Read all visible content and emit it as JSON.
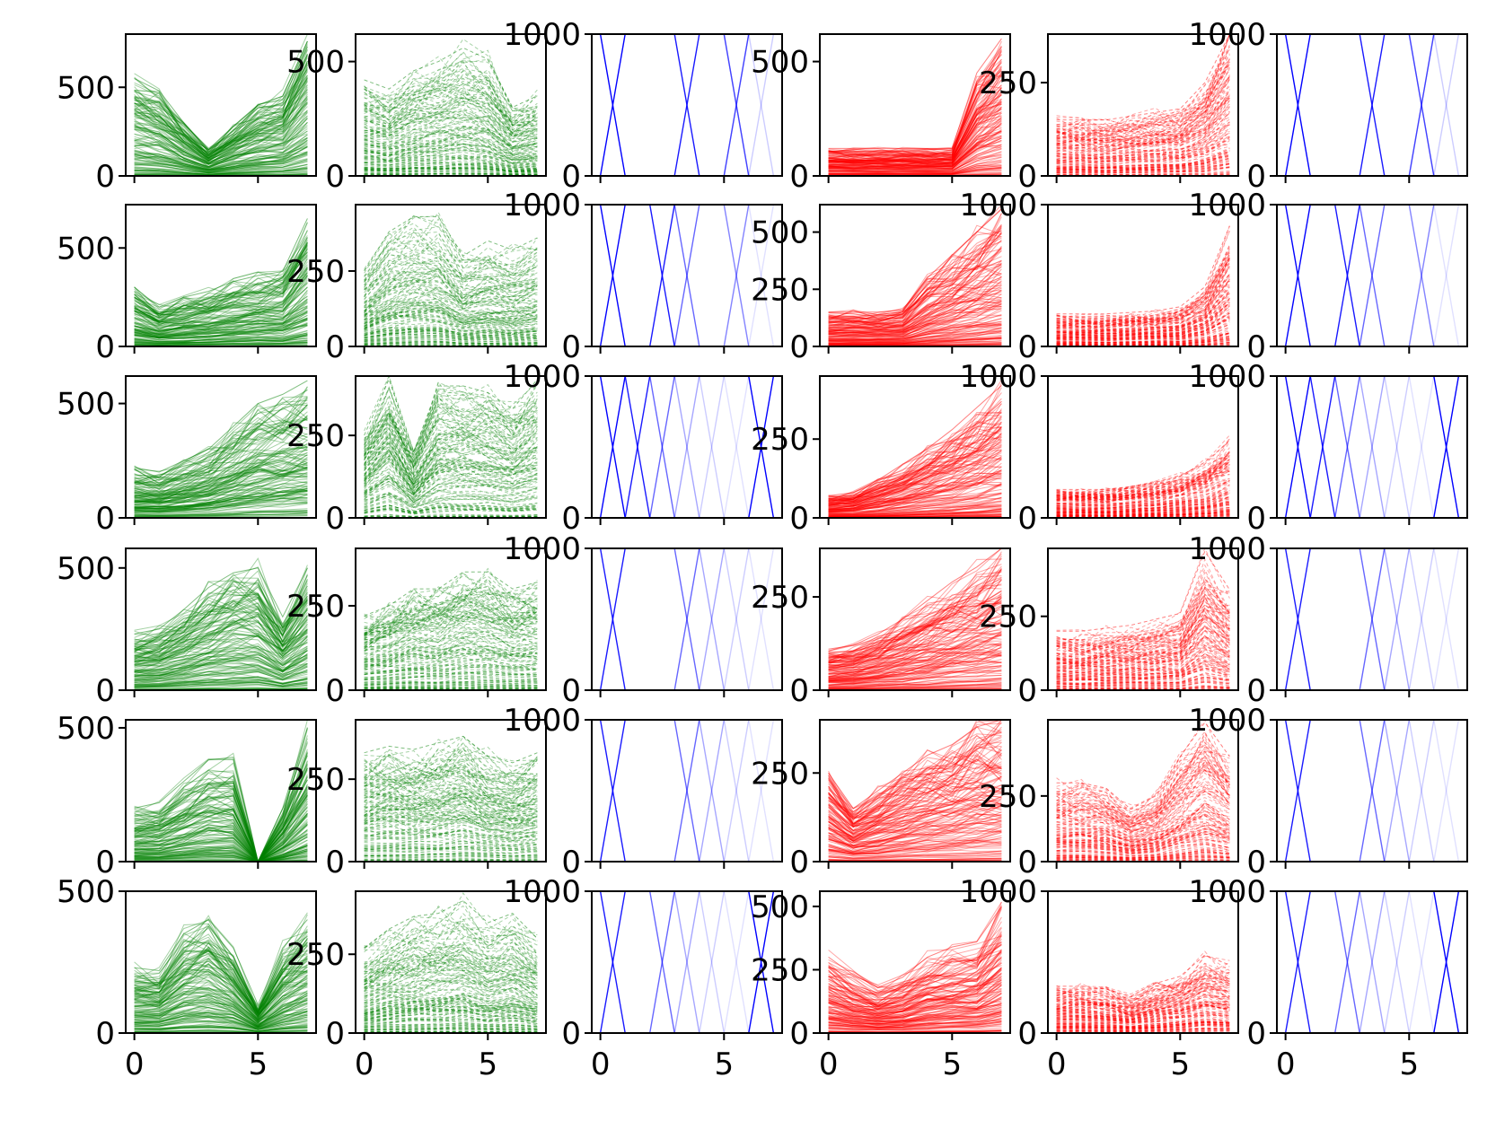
{
  "colors": {
    "green": "#008000",
    "red": "#ff0000",
    "blue": "#0000ff"
  },
  "chart_data": {
    "type": "line",
    "layout": "6x6 grid of small multiples; each row shares columns of the same kind",
    "x": [
      0,
      1,
      2,
      3,
      4,
      5,
      6,
      7
    ],
    "xlim": [
      -0.35,
      7.35
    ],
    "xticks": [
      0,
      5
    ],
    "xtick_labels_bottom_row_only": true,
    "column_kinds": [
      {
        "column": 1,
        "color": "green",
        "style": "solid",
        "description": "many overlapping series"
      },
      {
        "column": 2,
        "color": "green",
        "style": "dashed",
        "description": "many overlapping series"
      },
      {
        "column": 3,
        "color": "blue",
        "style": "solid",
        "description": "binary 0/1000 switching series"
      },
      {
        "column": 4,
        "color": "red",
        "style": "solid",
        "description": "many overlapping series"
      },
      {
        "column": 5,
        "color": "red",
        "style": "dashed",
        "description": "many overlapping series"
      },
      {
        "column": 6,
        "color": "blue",
        "style": "solid",
        "description": "binary 0/1000 switching series"
      }
    ],
    "panels": [
      [
        {
          "ylim": [
            0,
            800
          ],
          "yticks": [
            0,
            500
          ],
          "envelope": [
            550,
            480,
            300,
            150,
            280,
            400,
            450,
            760
          ],
          "peaks": [
            2,
            160,
            0,
            5,
            10,
            20,
            30,
            0
          ]
        },
        {
          "ylim": [
            0,
            620
          ],
          "yticks": [
            0,
            500
          ],
          "envelope": [
            420,
            380,
            460,
            500,
            560,
            510,
            300,
            350
          ]
        },
        {
          "ylim": [
            0,
            1000
          ],
          "yticks": [
            0,
            1000
          ],
          "switch": [
            1,
            4,
            5.5,
            6,
            7
          ]
        },
        {
          "ylim": [
            0,
            620
          ],
          "yticks": [
            0,
            500
          ],
          "envelope": [
            120,
            120,
            120,
            120,
            120,
            120,
            450,
            600
          ]
        },
        {
          "ylim": [
            0,
            380
          ],
          "yticks": [
            0,
            250
          ],
          "envelope": [
            150,
            150,
            150,
            160,
            170,
            180,
            250,
            390
          ]
        },
        {
          "ylim": [
            0,
            1000
          ],
          "yticks": [
            0,
            1000
          ],
          "switch": [
            1,
            4,
            5.5,
            6,
            7
          ]
        }
      ],
      [
        {
          "ylim": [
            0,
            720
          ],
          "yticks": [
            0,
            500
          ],
          "envelope": [
            300,
            200,
            250,
            280,
            330,
            360,
            380,
            650
          ]
        },
        {
          "ylim": [
            0,
            470
          ],
          "yticks": [
            0,
            250
          ],
          "envelope": [
            250,
            380,
            430,
            430,
            300,
            350,
            320,
            360
          ]
        },
        {
          "ylim": [
            0,
            1000
          ],
          "yticks": [
            0,
            1000
          ],
          "switch": [
            1,
            3,
            4,
            5.5,
            6,
            7
          ]
        },
        {
          "ylim": [
            0,
            620
          ],
          "yticks": [
            0,
            250,
            500
          ],
          "envelope": [
            150,
            150,
            150,
            160,
            300,
            400,
            500,
            600
          ]
        },
        {
          "ylim": [
            0,
            1000
          ],
          "yticks": [
            0,
            1000
          ],
          "envelope": [
            230,
            230,
            230,
            240,
            250,
            280,
            420,
            850
          ]
        },
        {
          "ylim": [
            0,
            1000
          ],
          "yticks": [
            0,
            1000
          ],
          "switch": [
            1,
            3,
            4,
            5.5,
            6,
            7
          ]
        }
      ],
      [
        {
          "ylim": [
            0,
            620
          ],
          "yticks": [
            0,
            500
          ],
          "envelope": [
            220,
            200,
            250,
            300,
            400,
            500,
            540,
            600
          ]
        },
        {
          "ylim": [
            0,
            430
          ],
          "yticks": [
            0,
            250
          ],
          "envelope": [
            250,
            420,
            200,
            400,
            400,
            380,
            330,
            420
          ]
        },
        {
          "ylim": [
            0,
            1000
          ],
          "yticks": [
            0,
            1000
          ],
          "switch": [
            1,
            2,
            3,
            4,
            5,
            6,
            7
          ]
        },
        {
          "ylim": [
            0,
            450
          ],
          "yticks": [
            0,
            250
          ],
          "envelope": [
            70,
            80,
            120,
            170,
            220,
            280,
            350,
            420
          ]
        },
        {
          "ylim": [
            0,
            1000
          ],
          "yticks": [
            0,
            1000
          ],
          "envelope": [
            200,
            200,
            200,
            220,
            250,
            300,
            380,
            550
          ]
        },
        {
          "ylim": [
            0,
            1000
          ],
          "yticks": [
            0,
            1000
          ],
          "switch": [
            1,
            2,
            3,
            4,
            5,
            6,
            7
          ]
        }
      ],
      [
        {
          "ylim": [
            0,
            580
          ],
          "yticks": [
            0,
            500
          ],
          "envelope": [
            230,
            250,
            330,
            420,
            480,
            500,
            300,
            500
          ]
        },
        {
          "ylim": [
            0,
            420
          ],
          "yticks": [
            0,
            250
          ],
          "envelope": [
            220,
            250,
            300,
            300,
            350,
            350,
            300,
            320
          ]
        },
        {
          "ylim": [
            0,
            1000
          ],
          "yticks": [
            0,
            1000
          ],
          "switch": [
            0,
            1,
            4,
            5,
            6,
            7
          ]
        },
        {
          "ylim": [
            0,
            380
          ],
          "yticks": [
            0,
            250
          ],
          "envelope": [
            110,
            120,
            150,
            190,
            240,
            290,
            330,
            380
          ]
        },
        {
          "ylim": [
            0,
            480
          ],
          "yticks": [
            0,
            250
          ],
          "envelope": [
            200,
            200,
            210,
            220,
            240,
            260,
            470,
            340
          ]
        },
        {
          "ylim": [
            0,
            1000
          ],
          "yticks": [
            0,
            1000
          ],
          "switch": [
            0,
            1,
            4,
            5,
            6,
            7
          ]
        }
      ],
      [
        {
          "ylim": [
            0,
            530
          ],
          "yticks": [
            0,
            500
          ],
          "envelope": [
            200,
            220,
            300,
            380,
            390,
            0,
            200,
            500
          ]
        },
        {
          "ylim": [
            0,
            430
          ],
          "yticks": [
            0,
            250
          ],
          "envelope": [
            330,
            350,
            340,
            360,
            380,
            320,
            300,
            330
          ]
        },
        {
          "ylim": [
            0,
            1000
          ],
          "yticks": [
            0,
            1000
          ],
          "switch": [
            0,
            1,
            4,
            4.5,
            6,
            7
          ]
        },
        {
          "ylim": [
            0,
            400
          ],
          "yticks": [
            0,
            250
          ],
          "envelope": [
            250,
            150,
            200,
            250,
            300,
            330,
            380,
            400
          ]
        },
        {
          "ylim": [
            0,
            540
          ],
          "yticks": [
            0,
            250
          ],
          "envelope": [
            300,
            300,
            280,
            200,
            250,
            400,
            530,
            400
          ]
        },
        {
          "ylim": [
            0,
            1000
          ],
          "yticks": [
            0,
            1000
          ],
          "switch": [
            0,
            1,
            4,
            4.5,
            6,
            7
          ]
        }
      ],
      [
        {
          "ylim": [
            0,
            500
          ],
          "yticks": [
            0,
            500
          ],
          "envelope": [
            230,
            220,
            350,
            400,
            300,
            100,
            300,
            400
          ]
        },
        {
          "ylim": [
            0,
            450
          ],
          "yticks": [
            0,
            250
          ],
          "envelope": [
            270,
            330,
            370,
            380,
            420,
            350,
            380,
            300
          ]
        },
        {
          "ylim": [
            0,
            1000
          ],
          "yticks": [
            0,
            1000
          ],
          "switch": [
            0,
            1,
            3,
            4,
            4.5,
            6,
            7
          ]
        },
        {
          "ylim": [
            0,
            560
          ],
          "yticks": [
            0,
            250,
            500
          ],
          "envelope": [
            300,
            230,
            180,
            220,
            300,
            340,
            360,
            500
          ]
        },
        {
          "ylim": [
            0,
            1000
          ],
          "yticks": [
            0,
            1000
          ],
          "envelope": [
            330,
            330,
            310,
            260,
            350,
            400,
            550,
            480
          ]
        },
        {
          "ylim": [
            0,
            1000
          ],
          "yticks": [
            0,
            1000
          ],
          "switch": [
            0,
            1,
            3,
            4,
            4.5,
            6,
            7
          ]
        }
      ]
    ]
  }
}
